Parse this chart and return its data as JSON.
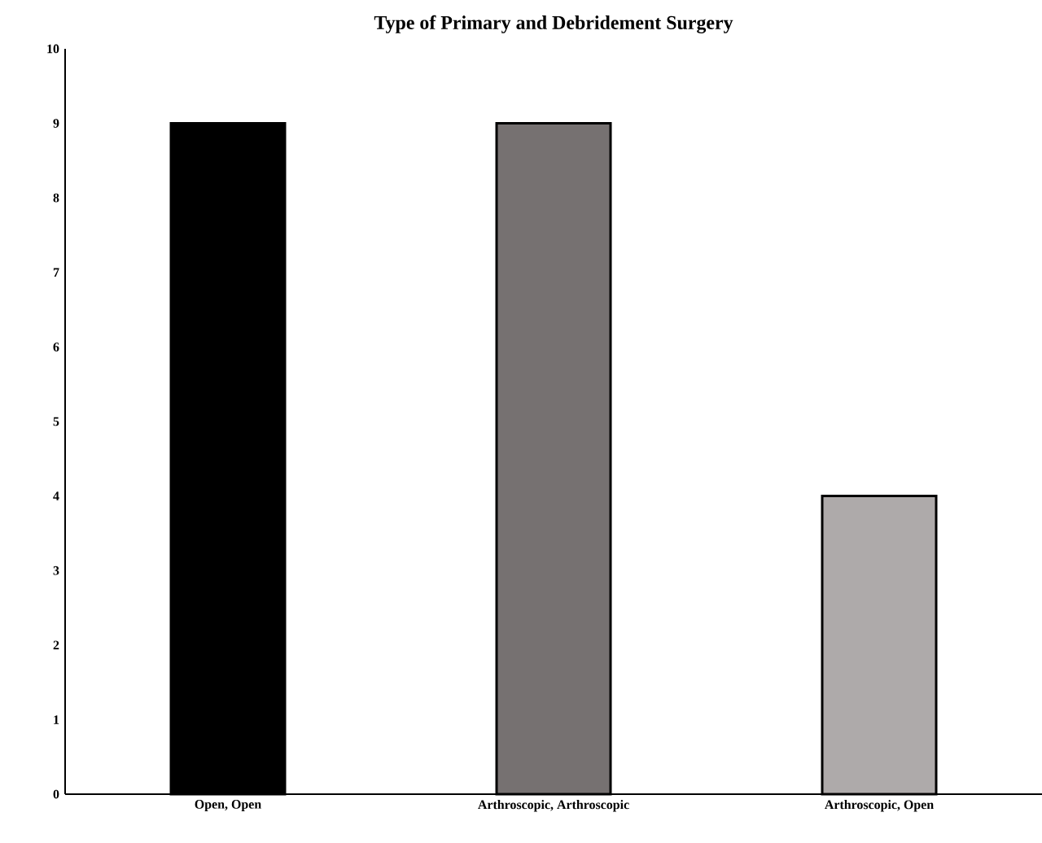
{
  "chart_data": {
    "type": "bar",
    "title": "Type of Primary and Debridement Surgery",
    "categories": [
      "Open, Open",
      "Arthroscopic, Arthroscopic",
      "Arthroscopic, Open"
    ],
    "values": [
      9,
      9,
      4
    ],
    "colors": [
      "#000000",
      "#767171",
      "#aeaaaa"
    ],
    "ylim": [
      0,
      10
    ],
    "yticks": [
      0,
      1,
      2,
      3,
      4,
      5,
      6,
      7,
      8,
      9,
      10
    ]
  }
}
